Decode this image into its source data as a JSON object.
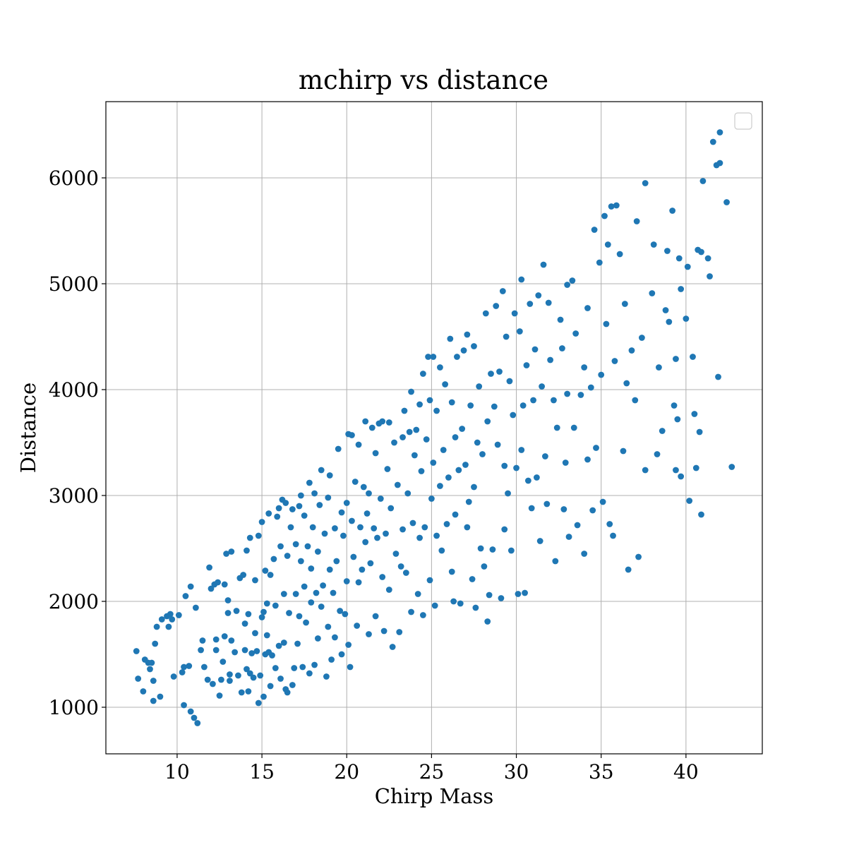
{
  "chart_data": {
    "type": "scatter",
    "title": "mchirp vs distance",
    "xlabel": "Chirp Mass",
    "ylabel": "Distance",
    "xlim": [
      5.8,
      44.5
    ],
    "ylim": [
      560,
      6720
    ],
    "xticks": [
      10,
      15,
      20,
      25,
      30,
      35,
      40
    ],
    "yticks": [
      1000,
      2000,
      3000,
      4000,
      5000,
      6000
    ],
    "grid": true,
    "legend": "top-right, empty",
    "point_color": "#1f77b4",
    "points": [
      [
        7.6,
        1530
      ],
      [
        7.7,
        1270
      ],
      [
        8.0,
        1150
      ],
      [
        8.1,
        1450
      ],
      [
        8.3,
        1420
      ],
      [
        8.4,
        1360
      ],
      [
        8.5,
        1420
      ],
      [
        8.6,
        1250
      ],
      [
        8.6,
        1060
      ],
      [
        8.7,
        1600
      ],
      [
        8.8,
        1760
      ],
      [
        9.0,
        1100
      ],
      [
        9.1,
        1830
      ],
      [
        9.4,
        1860
      ],
      [
        9.5,
        1760
      ],
      [
        9.6,
        1880
      ],
      [
        9.7,
        1830
      ],
      [
        9.8,
        1290
      ],
      [
        10.1,
        1870
      ],
      [
        10.3,
        1330
      ],
      [
        10.4,
        1020
      ],
      [
        10.4,
        1380
      ],
      [
        10.5,
        2050
      ],
      [
        10.7,
        1390
      ],
      [
        10.8,
        960
      ],
      [
        10.8,
        2140
      ],
      [
        11.0,
        900
      ],
      [
        11.1,
        1940
      ],
      [
        11.2,
        850
      ],
      [
        11.4,
        1540
      ],
      [
        11.5,
        1630
      ],
      [
        11.6,
        1380
      ],
      [
        11.8,
        1260
      ],
      [
        11.9,
        2320
      ],
      [
        12.0,
        2120
      ],
      [
        12.1,
        1220
      ],
      [
        12.2,
        2160
      ],
      [
        12.3,
        1540
      ],
      [
        12.3,
        1640
      ],
      [
        12.4,
        2180
      ],
      [
        12.5,
        1110
      ],
      [
        12.6,
        1260
      ],
      [
        12.7,
        1430
      ],
      [
        12.8,
        1670
      ],
      [
        12.8,
        2160
      ],
      [
        12.9,
        2450
      ],
      [
        13.0,
        1890
      ],
      [
        13.0,
        2010
      ],
      [
        13.1,
        1250
      ],
      [
        13.1,
        1310
      ],
      [
        13.2,
        1630
      ],
      [
        13.2,
        2470
      ],
      [
        13.4,
        1520
      ],
      [
        13.5,
        1910
      ],
      [
        13.6,
        1300
      ],
      [
        13.7,
        2220
      ],
      [
        13.8,
        1140
      ],
      [
        13.9,
        2250
      ],
      [
        14.0,
        1540
      ],
      [
        14.0,
        1790
      ],
      [
        14.1,
        1360
      ],
      [
        14.1,
        2480
      ],
      [
        14.2,
        1150
      ],
      [
        14.2,
        1880
      ],
      [
        14.3,
        2600
      ],
      [
        14.3,
        1320
      ],
      [
        14.4,
        1510
      ],
      [
        14.5,
        1280
      ],
      [
        14.6,
        1700
      ],
      [
        14.6,
        2200
      ],
      [
        14.7,
        1530
      ],
      [
        14.8,
        2620
      ],
      [
        14.8,
        1040
      ],
      [
        14.9,
        1300
      ],
      [
        15.0,
        2750
      ],
      [
        15.0,
        1850
      ],
      [
        15.1,
        1900
      ],
      [
        15.1,
        1100
      ],
      [
        15.2,
        1500
      ],
      [
        15.2,
        2290
      ],
      [
        15.3,
        1680
      ],
      [
        15.3,
        1980
      ],
      [
        15.4,
        2830
      ],
      [
        15.4,
        1520
      ],
      [
        15.5,
        2250
      ],
      [
        15.5,
        1200
      ],
      [
        15.6,
        1490
      ],
      [
        15.7,
        2400
      ],
      [
        15.8,
        1960
      ],
      [
        15.8,
        1370
      ],
      [
        15.9,
        2800
      ],
      [
        16.0,
        2880
      ],
      [
        16.0,
        1580
      ],
      [
        16.1,
        2520
      ],
      [
        16.1,
        1270
      ],
      [
        16.2,
        2960
      ],
      [
        16.3,
        1610
      ],
      [
        16.3,
        2070
      ],
      [
        16.4,
        1170
      ],
      [
        16.4,
        2930
      ],
      [
        16.5,
        2430
      ],
      [
        16.5,
        1140
      ],
      [
        16.6,
        1890
      ],
      [
        16.7,
        2700
      ],
      [
        16.8,
        2870
      ],
      [
        16.8,
        1210
      ],
      [
        16.9,
        1370
      ],
      [
        17.0,
        2070
      ],
      [
        17.0,
        2540
      ],
      [
        17.1,
        1600
      ],
      [
        17.2,
        2900
      ],
      [
        17.2,
        1860
      ],
      [
        17.3,
        3000
      ],
      [
        17.3,
        2380
      ],
      [
        17.4,
        1380
      ],
      [
        17.5,
        2810
      ],
      [
        17.5,
        2140
      ],
      [
        17.6,
        1800
      ],
      [
        17.7,
        2520
      ],
      [
        17.8,
        3120
      ],
      [
        17.8,
        1320
      ],
      [
        17.9,
        2310
      ],
      [
        17.9,
        1990
      ],
      [
        18.0,
        2700
      ],
      [
        18.1,
        1400
      ],
      [
        18.1,
        3020
      ],
      [
        18.2,
        2080
      ],
      [
        18.3,
        1650
      ],
      [
        18.3,
        2470
      ],
      [
        18.4,
        2910
      ],
      [
        18.5,
        1950
      ],
      [
        18.5,
        3240
      ],
      [
        18.6,
        2150
      ],
      [
        18.7,
        2640
      ],
      [
        18.8,
        1290
      ],
      [
        18.9,
        2980
      ],
      [
        18.9,
        1760
      ],
      [
        19.0,
        2300
      ],
      [
        19.0,
        3190
      ],
      [
        19.1,
        1450
      ],
      [
        19.2,
        2080
      ],
      [
        19.3,
        2690
      ],
      [
        19.3,
        1660
      ],
      [
        19.4,
        2380
      ],
      [
        19.5,
        3440
      ],
      [
        19.6,
        1910
      ],
      [
        19.7,
        2840
      ],
      [
        19.7,
        1500
      ],
      [
        19.8,
        2620
      ],
      [
        19.9,
        1880
      ],
      [
        20.0,
        2190
      ],
      [
        20.0,
        2930
      ],
      [
        20.1,
        1590
      ],
      [
        20.1,
        3580
      ],
      [
        20.2,
        1380
      ],
      [
        20.3,
        2760
      ],
      [
        20.3,
        3570
      ],
      [
        20.4,
        2420
      ],
      [
        20.5,
        3130
      ],
      [
        20.6,
        1770
      ],
      [
        20.7,
        2180
      ],
      [
        20.7,
        3480
      ],
      [
        20.8,
        2700
      ],
      [
        20.9,
        2300
      ],
      [
        21.0,
        3080
      ],
      [
        21.1,
        2560
      ],
      [
        21.1,
        3700
      ],
      [
        21.2,
        2830
      ],
      [
        21.3,
        1690
      ],
      [
        21.3,
        3020
      ],
      [
        21.4,
        2360
      ],
      [
        21.5,
        3640
      ],
      [
        21.6,
        2690
      ],
      [
        21.7,
        1860
      ],
      [
        21.7,
        3400
      ],
      [
        21.8,
        2600
      ],
      [
        21.9,
        3680
      ],
      [
        22.0,
        2970
      ],
      [
        22.1,
        2230
      ],
      [
        22.1,
        3700
      ],
      [
        22.2,
        1720
      ],
      [
        22.3,
        2640
      ],
      [
        22.4,
        3250
      ],
      [
        22.5,
        2110
      ],
      [
        22.5,
        3690
      ],
      [
        22.6,
        2880
      ],
      [
        22.7,
        1570
      ],
      [
        22.8,
        3500
      ],
      [
        22.9,
        2450
      ],
      [
        23.0,
        3100
      ],
      [
        23.1,
        1710
      ],
      [
        23.2,
        2330
      ],
      [
        23.3,
        3550
      ],
      [
        23.3,
        2680
      ],
      [
        23.4,
        3800
      ],
      [
        23.5,
        2270
      ],
      [
        23.6,
        3020
      ],
      [
        23.7,
        3600
      ],
      [
        23.8,
        1900
      ],
      [
        23.8,
        3980
      ],
      [
        23.9,
        2740
      ],
      [
        24.0,
        3380
      ],
      [
        24.1,
        3620
      ],
      [
        24.2,
        2070
      ],
      [
        24.3,
        2600
      ],
      [
        24.3,
        3860
      ],
      [
        24.4,
        3230
      ],
      [
        24.5,
        1870
      ],
      [
        24.5,
        4150
      ],
      [
        24.6,
        2700
      ],
      [
        24.7,
        3530
      ],
      [
        24.8,
        4310
      ],
      [
        24.9,
        2200
      ],
      [
        24.9,
        3900
      ],
      [
        25.0,
        2970
      ],
      [
        25.1,
        3310
      ],
      [
        25.1,
        4310
      ],
      [
        25.2,
        1960
      ],
      [
        25.3,
        2620
      ],
      [
        25.3,
        3800
      ],
      [
        25.5,
        4210
      ],
      [
        25.5,
        3090
      ],
      [
        25.6,
        2480
      ],
      [
        25.7,
        3430
      ],
      [
        25.8,
        4050
      ],
      [
        25.9,
        2730
      ],
      [
        26.0,
        3170
      ],
      [
        26.1,
        4480
      ],
      [
        26.2,
        3880
      ],
      [
        26.2,
        2280
      ],
      [
        26.3,
        2000
      ],
      [
        26.4,
        3550
      ],
      [
        26.4,
        2820
      ],
      [
        26.5,
        4310
      ],
      [
        26.6,
        3240
      ],
      [
        26.7,
        1980
      ],
      [
        26.8,
        3630
      ],
      [
        26.9,
        4370
      ],
      [
        27.0,
        3290
      ],
      [
        27.1,
        2700
      ],
      [
        27.1,
        4520
      ],
      [
        27.2,
        2940
      ],
      [
        27.3,
        3850
      ],
      [
        27.4,
        2210
      ],
      [
        27.5,
        4410
      ],
      [
        27.5,
        3080
      ],
      [
        27.6,
        1940
      ],
      [
        27.7,
        3500
      ],
      [
        27.8,
        4030
      ],
      [
        27.9,
        2500
      ],
      [
        28.0,
        3390
      ],
      [
        28.1,
        2330
      ],
      [
        28.2,
        4720
      ],
      [
        28.3,
        1810
      ],
      [
        28.3,
        3700
      ],
      [
        28.4,
        2060
      ],
      [
        28.5,
        4150
      ],
      [
        28.6,
        2490
      ],
      [
        28.7,
        3840
      ],
      [
        28.8,
        4790
      ],
      [
        28.9,
        3480
      ],
      [
        29.0,
        4170
      ],
      [
        29.1,
        2030
      ],
      [
        29.2,
        4930
      ],
      [
        29.3,
        3280
      ],
      [
        29.3,
        2680
      ],
      [
        29.4,
        4500
      ],
      [
        29.5,
        3020
      ],
      [
        29.6,
        4080
      ],
      [
        29.7,
        2480
      ],
      [
        29.8,
        3760
      ],
      [
        29.9,
        4720
      ],
      [
        30.0,
        3260
      ],
      [
        30.1,
        2070
      ],
      [
        30.2,
        4550
      ],
      [
        30.3,
        3430
      ],
      [
        30.3,
        5040
      ],
      [
        30.4,
        3850
      ],
      [
        30.5,
        2080
      ],
      [
        30.6,
        4230
      ],
      [
        30.7,
        3140
      ],
      [
        30.8,
        4810
      ],
      [
        30.9,
        2880
      ],
      [
        31.0,
        3900
      ],
      [
        31.1,
        4380
      ],
      [
        31.2,
        3170
      ],
      [
        31.3,
        4890
      ],
      [
        31.4,
        2570
      ],
      [
        31.5,
        4030
      ],
      [
        31.6,
        5180
      ],
      [
        31.7,
        3370
      ],
      [
        31.8,
        2920
      ],
      [
        31.9,
        4820
      ],
      [
        32.0,
        4280
      ],
      [
        32.2,
        3900
      ],
      [
        32.3,
        2380
      ],
      [
        32.4,
        3640
      ],
      [
        32.6,
        4660
      ],
      [
        32.7,
        4390
      ],
      [
        32.8,
        2870
      ],
      [
        32.9,
        3310
      ],
      [
        33.0,
        4990
      ],
      [
        33.0,
        3960
      ],
      [
        33.1,
        2610
      ],
      [
        33.3,
        5030
      ],
      [
        33.4,
        3640
      ],
      [
        33.5,
        4530
      ],
      [
        33.6,
        2720
      ],
      [
        33.8,
        3950
      ],
      [
        34.0,
        4210
      ],
      [
        34.0,
        2450
      ],
      [
        34.2,
        4770
      ],
      [
        34.2,
        3340
      ],
      [
        34.4,
        4020
      ],
      [
        34.5,
        2860
      ],
      [
        34.6,
        5510
      ],
      [
        34.7,
        3450
      ],
      [
        34.9,
        5200
      ],
      [
        35.0,
        4140
      ],
      [
        35.1,
        2940
      ],
      [
        35.2,
        5640
      ],
      [
        35.3,
        4620
      ],
      [
        35.4,
        5370
      ],
      [
        35.5,
        2730
      ],
      [
        35.6,
        5730
      ],
      [
        35.7,
        2620
      ],
      [
        35.8,
        4270
      ],
      [
        35.9,
        5740
      ],
      [
        36.1,
        5280
      ],
      [
        36.3,
        3420
      ],
      [
        36.4,
        4810
      ],
      [
        36.5,
        4060
      ],
      [
        36.6,
        2300
      ],
      [
        36.8,
        4370
      ],
      [
        37.0,
        3900
      ],
      [
        37.1,
        5590
      ],
      [
        37.2,
        2420
      ],
      [
        37.4,
        4490
      ],
      [
        37.6,
        5950
      ],
      [
        37.6,
        3240
      ],
      [
        38.0,
        4910
      ],
      [
        38.1,
        5370
      ],
      [
        38.3,
        3390
      ],
      [
        38.4,
        4210
      ],
      [
        38.6,
        3610
      ],
      [
        38.8,
        4750
      ],
      [
        38.9,
        5310
      ],
      [
        39.0,
        4640
      ],
      [
        39.2,
        5690
      ],
      [
        39.3,
        3850
      ],
      [
        39.4,
        3240
      ],
      [
        39.4,
        4290
      ],
      [
        39.5,
        3720
      ],
      [
        39.6,
        5240
      ],
      [
        39.7,
        3180
      ],
      [
        39.7,
        4950
      ],
      [
        40.0,
        4670
      ],
      [
        40.1,
        5160
      ],
      [
        40.2,
        2950
      ],
      [
        40.4,
        4310
      ],
      [
        40.5,
        3770
      ],
      [
        40.6,
        3260
      ],
      [
        40.7,
        5320
      ],
      [
        40.8,
        3600
      ],
      [
        40.9,
        5300
      ],
      [
        40.9,
        2820
      ],
      [
        41.0,
        5970
      ],
      [
        41.3,
        5240
      ],
      [
        41.4,
        5070
      ],
      [
        41.6,
        6340
      ],
      [
        41.8,
        6120
      ],
      [
        41.9,
        4120
      ],
      [
        42.0,
        6430
      ],
      [
        42.0,
        6140
      ],
      [
        42.4,
        5770
      ],
      [
        42.7,
        3270
      ]
    ]
  }
}
